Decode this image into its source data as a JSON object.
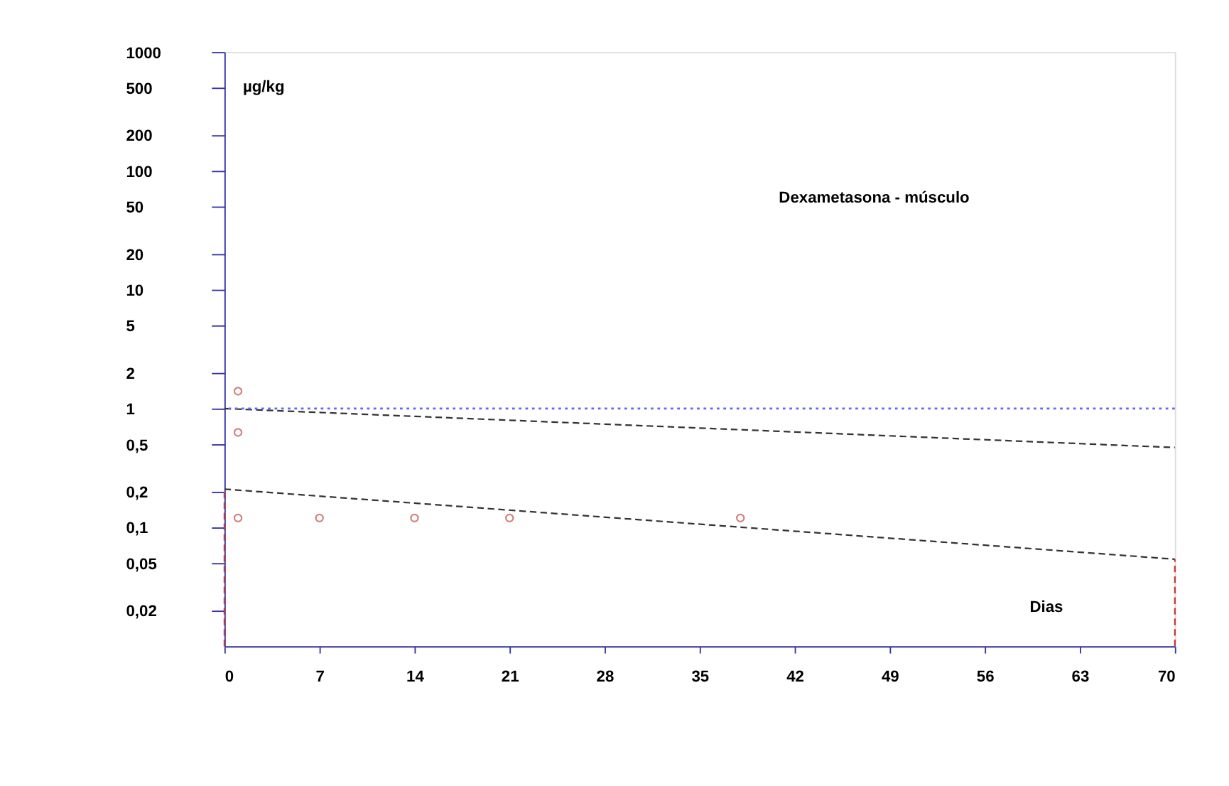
{
  "chart_data": {
    "type": "scatter",
    "title": "Dexametasona - músculo",
    "xlabel": "Dias",
    "ylabel": "µg/kg",
    "log": "y",
    "grid": false,
    "xlim": [
      0,
      70
    ],
    "xticks": [
      0,
      7,
      14,
      21,
      28,
      35,
      42,
      49,
      56,
      63,
      70
    ],
    "ylim": [
      0.01,
      1000
    ],
    "yticks": [
      {
        "value": 0.02,
        "label": "0,02"
      },
      {
        "value": 0.05,
        "label": "0,05"
      },
      {
        "value": 0.1,
        "label": "0,1"
      },
      {
        "value": 0.2,
        "label": "0,2"
      },
      {
        "value": 0.5,
        "label": "0,5"
      },
      1,
      2,
      5,
      10,
      20,
      50,
      100,
      200,
      500,
      1000
    ],
    "series": [
      {
        "color": "#c0504d",
        "marker": "circle",
        "x": [
          1,
          1,
          1,
          7,
          14,
          21,
          38
        ],
        "values": [
          1.4,
          0.63,
          0.12,
          0.12,
          0.12,
          0.12,
          0.12
        ]
      },
      {
        "type": "line",
        "marker": "none",
        "color": "#333333",
        "line_style": "dashed",
        "x": [
          0,
          70
        ],
        "values": [
          1.0,
          0.47
        ]
      },
      {
        "type": "line",
        "marker": "none",
        "color": "#333333",
        "line_style": "dashed",
        "x": [
          0,
          70
        ],
        "values": [
          0.21,
          0.054
        ]
      },
      {
        "type": "line",
        "marker": "none",
        "color": "#cc3333",
        "line_style": "dashed",
        "x": [
          70,
          70
        ],
        "values": [
          0.01,
          0.054
        ]
      },
      {
        "type": "line",
        "marker": "none",
        "color": "#cc3333",
        "line_style": "dashed",
        "x": [
          0,
          0
        ],
        "values": [
          0.01,
          0.21
        ]
      }
    ],
    "ref_lines": [
      {
        "axis": "y",
        "value": 1,
        "color": "#6666ee",
        "line_style": "dotted"
      }
    ]
  }
}
